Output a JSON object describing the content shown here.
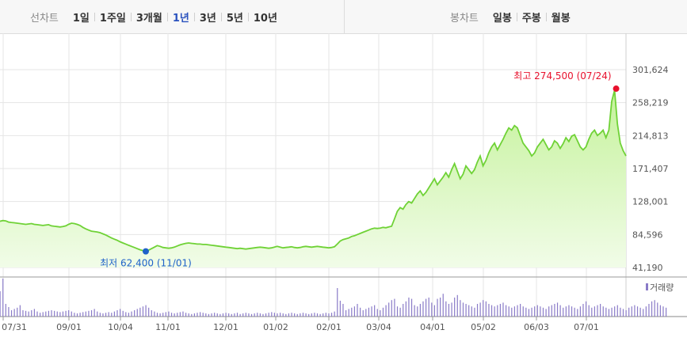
{
  "toolbar": {
    "line_chart": {
      "label": "선차트",
      "items": [
        "1일",
        "1주일",
        "3개월",
        "1년",
        "3년",
        "5년",
        "10년"
      ],
      "active": "1년"
    },
    "candle_chart": {
      "label": "봉차트",
      "items": [
        "일봉",
        "주봉",
        "월봉"
      ]
    }
  },
  "chart_data": {
    "type": "area",
    "y_ticks": [
      "301,624",
      "258,219",
      "214,813",
      "171,407",
      "128,001",
      "84,596",
      "41,190"
    ],
    "x_ticks": [
      "07/31",
      "09/01",
      "10/04",
      "11/01",
      "12/01",
      "01/02",
      "02/01",
      "03/04",
      "04/01",
      "05/02",
      "06/03",
      "07/01"
    ],
    "ylim": [
      41190,
      301624
    ],
    "grid": true,
    "colors": {
      "line": "#6fd236",
      "fill_top": "#c5f29b",
      "fill_bottom": "#f1fce8",
      "max": "#e8112d",
      "min": "#1f62c9",
      "volume": "#8a7bc8"
    },
    "max_annotation": "최고 274,500 (07/24)",
    "min_annotation": "최저 62,400 (11/01)",
    "volume_legend": "거래량",
    "series": [
      {
        "values": [
          102000,
          103000,
          102500,
          101000,
          100500,
          100000,
          99500,
          99000,
          98500,
          98000,
          98500,
          99000,
          98000,
          97500,
          97000,
          96500,
          97000,
          97500,
          96000,
          95500,
          95000,
          94500,
          95000,
          96000,
          98000,
          99500,
          99000,
          98000,
          96500,
          94000,
          92000,
          90500,
          89000,
          88500,
          88000,
          87000,
          85500,
          84000,
          82000,
          80000,
          78500,
          77000,
          75000,
          73500,
          72000,
          70500,
          69000,
          67500,
          66000,
          64500,
          63500,
          62400,
          64000,
          66000,
          68000,
          70000,
          69000,
          67500,
          67000,
          66500,
          67000,
          68000,
          69500,
          71000,
          72000,
          73000,
          73500,
          73000,
          72500,
          72000,
          72000,
          71500,
          71500,
          71000,
          70500,
          70000,
          69500,
          69000,
          68500,
          68000,
          67500,
          67000,
          66500,
          66000,
          66500,
          66000,
          65500,
          66000,
          66500,
          67000,
          67500,
          68000,
          67500,
          67000,
          66500,
          67000,
          68000,
          69000,
          68000,
          67000,
          67500,
          68000,
          68500,
          67500,
          67000,
          67500,
          68500,
          69000,
          68500,
          68000,
          68500,
          69000,
          68500,
          68000,
          67500,
          67000,
          67500,
          68500,
          72000,
          76000,
          78000,
          79000,
          80000,
          82000,
          83000,
          84500,
          86000,
          87500,
          89000,
          90500,
          92000,
          93000,
          92500,
          93000,
          94000,
          93500,
          94500,
          95500,
          105000,
          115000,
          120000,
          118000,
          124000,
          128000,
          126000,
          132000,
          138000,
          142000,
          136000,
          140000,
          146000,
          152000,
          158000,
          150000,
          155000,
          160000,
          166000,
          160000,
          170000,
          178000,
          168000,
          158000,
          164000,
          175000,
          170000,
          165000,
          170000,
          180000,
          188000,
          175000,
          182000,
          192000,
          200000,
          205000,
          196000,
          203000,
          210000,
          218000,
          225000,
          222000,
          228000,
          225000,
          215000,
          205000,
          200000,
          195000,
          188000,
          192000,
          200000,
          205000,
          210000,
          203000,
          196000,
          200000,
          208000,
          205000,
          198000,
          204000,
          212000,
          207000,
          214000,
          216000,
          208000,
          200000,
          196000,
          200000,
          210000,
          218000,
          222000,
          215000,
          218000,
          222000,
          212000,
          222000,
          260000,
          274500,
          230000,
          205000,
          195000,
          188000
        ]
      },
      {
        "name": "거래량",
        "values": [
          40,
          60,
          20,
          15,
          10,
          12,
          14,
          18,
          10,
          9,
          8,
          10,
          12,
          8,
          6,
          7,
          8,
          9,
          10,
          9,
          8,
          7,
          8,
          9,
          10,
          8,
          6,
          5,
          6,
          7,
          8,
          9,
          10,
          12,
          8,
          6,
          5,
          6,
          7,
          6,
          8,
          10,
          12,
          9,
          7,
          6,
          8,
          10,
          12,
          14,
          16,
          18,
          14,
          10,
          8,
          6,
          5,
          6,
          7,
          8,
          6,
          5,
          6,
          7,
          8,
          6,
          5,
          4,
          5,
          6,
          7,
          6,
          5,
          4,
          5,
          6,
          5,
          4,
          5,
          6,
          5,
          4,
          5,
          6,
          4,
          5,
          6,
          5,
          4,
          5,
          6,
          5,
          4,
          5,
          6,
          7,
          6,
          5,
          6,
          5,
          4,
          5,
          6,
          5,
          4,
          5,
          6,
          5,
          4,
          5,
          6,
          5,
          4,
          5,
          6,
          5,
          6,
          8,
          45,
          25,
          20,
          10,
          12,
          14,
          16,
          20,
          14,
          10,
          12,
          14,
          16,
          18,
          12,
          10,
          14,
          18,
          22,
          26,
          28,
          16,
          14,
          20,
          24,
          30,
          28,
          18,
          16,
          20,
          24,
          28,
          30,
          22,
          18,
          28,
          30,
          36,
          24,
          20,
          22,
          30,
          34,
          26,
          22,
          20,
          18,
          16,
          14,
          20,
          22,
          26,
          24,
          20,
          18,
          16,
          18,
          20,
          22,
          18,
          16,
          14,
          16,
          18,
          20,
          16,
          14,
          12,
          14,
          16,
          18,
          16,
          14,
          12,
          16,
          18,
          20,
          22,
          18,
          14,
          16,
          18,
          16,
          14,
          12,
          16,
          20,
          24,
          18,
          14,
          16,
          18,
          20,
          16,
          14,
          12,
          14,
          16,
          18,
          14,
          12,
          10,
          14,
          16,
          18,
          16,
          14,
          12,
          16,
          20,
          24,
          26,
          22,
          18,
          16,
          14
        ]
      }
    ]
  }
}
